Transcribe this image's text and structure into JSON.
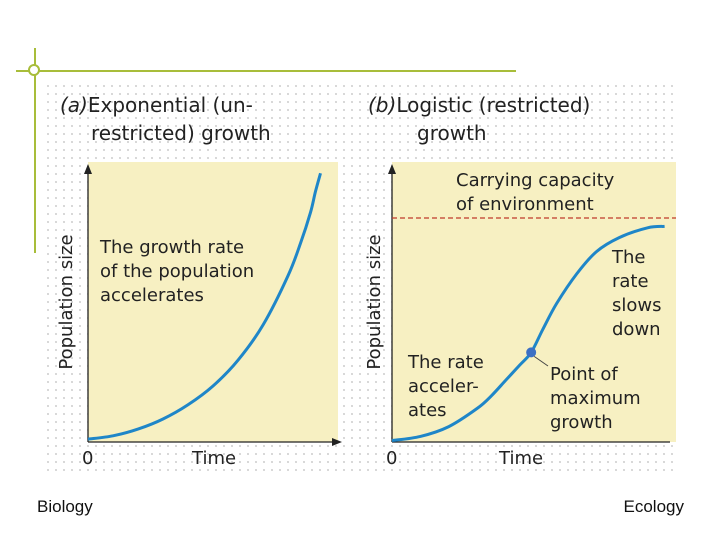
{
  "footer": {
    "left": "Biology",
    "right": "Ecology"
  },
  "colors": {
    "plot_bg": "#f7f0c2",
    "curve": "#1f86c8",
    "capacity_line": "#c0392b",
    "point": "#3b6fc4",
    "accent": "#a8bd3a"
  },
  "chart_data": [
    {
      "type": "line",
      "title_prefix": "(a)",
      "title_lines": [
        "Exponential (un-",
        "restricted) growth"
      ],
      "xlabel": "Time",
      "ylabel": "Population size",
      "x_tick_label": "0",
      "xlim": [
        0,
        10
      ],
      "ylim": [
        0,
        10
      ],
      "grid": true,
      "annotation_lines": [
        "The growth rate",
        "of the population",
        "accelerates"
      ],
      "series": [
        {
          "x": [
            0,
            1,
            2,
            3,
            4,
            5,
            6,
            7,
            8,
            8.5,
            8.9,
            9.1,
            9.3
          ],
          "y": [
            0.1,
            0.22,
            0.46,
            0.82,
            1.33,
            2.0,
            2.92,
            4.18,
            5.94,
            7.1,
            8.2,
            8.95,
            9.6
          ]
        }
      ]
    },
    {
      "type": "line",
      "title_prefix": "(b)",
      "title_lines": [
        "Logistic (restricted)",
        "growth"
      ],
      "xlabel": "Time",
      "ylabel": "Population size",
      "x_tick_label": "0",
      "xlim": [
        0,
        10
      ],
      "ylim": [
        0,
        10
      ],
      "grid": true,
      "carrying_capacity": 8.0,
      "capacity_label_lines": [
        "Carrying capacity",
        "of environment"
      ],
      "left_annotation_lines": [
        "The rate",
        "acceler-",
        "ates"
      ],
      "right_annotation_lines": [
        "The",
        "rate",
        "slows",
        "down"
      ],
      "point_label_lines": [
        "Point of",
        "maximum",
        "growth"
      ],
      "inflection_point": {
        "x": 4.9,
        "y": 3.2
      },
      "series": [
        {
          "x": [
            0,
            1,
            2,
            3,
            3.5,
            4,
            4.5,
            4.9,
            5.3,
            5.8,
            6.5,
            7.2,
            8,
            9,
            9.6
          ],
          "y": [
            0.05,
            0.2,
            0.55,
            1.2,
            1.65,
            2.2,
            2.75,
            3.2,
            4.0,
            4.95,
            6.0,
            6.8,
            7.3,
            7.65,
            7.7
          ]
        }
      ]
    }
  ]
}
